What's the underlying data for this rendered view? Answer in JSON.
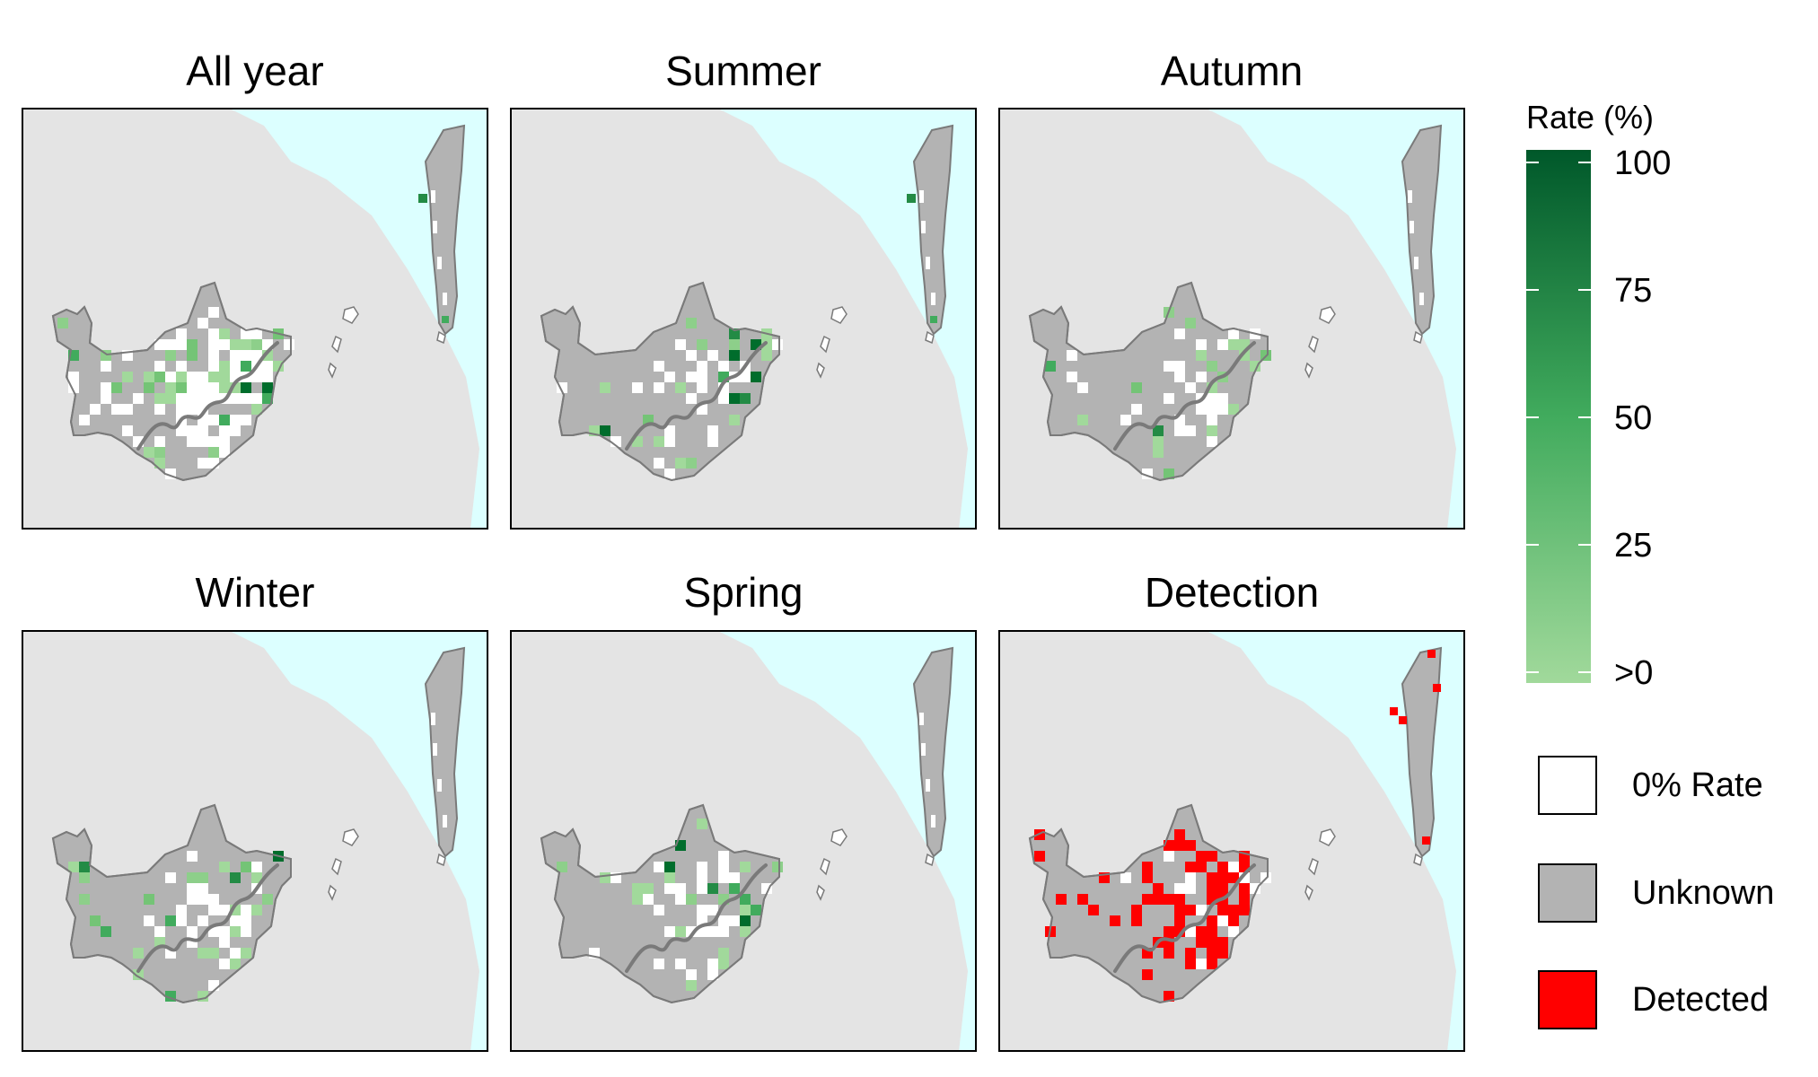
{
  "panels": [
    {
      "title": "All year",
      "kind": "rate"
    },
    {
      "title": "Summer",
      "kind": "rate"
    },
    {
      "title": "Autumn",
      "kind": "rate"
    },
    {
      "title": "Winter",
      "kind": "rate"
    },
    {
      "title": "Spring",
      "kind": "rate"
    },
    {
      "title": "Detection",
      "kind": "detection"
    }
  ],
  "legend": {
    "title": "Rate (%)",
    "ticks": [
      "100",
      "75",
      "50",
      "25",
      ">0"
    ],
    "gradient": {
      "low": "#a1d99b",
      "high": "#00582a"
    },
    "categories": [
      {
        "label": "0% Rate",
        "color": "#ffffff"
      },
      {
        "label": "Unknown",
        "color": "#b3b3b3"
      },
      {
        "label": "Detected",
        "color": "#ff0000"
      }
    ]
  },
  "colors": {
    "land": "#e4e4e4",
    "sea": "#dcffff",
    "unknown": "#b3b3b3",
    "zero": "#ffffff",
    "detected": "#ff0000",
    "border": "#7a7a7a"
  }
}
